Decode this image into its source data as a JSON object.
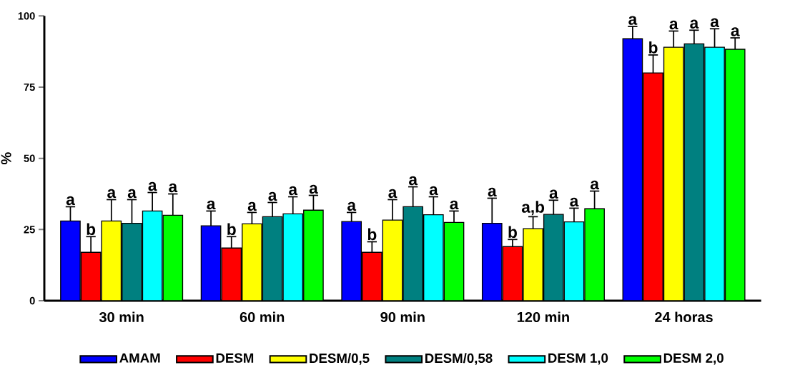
{
  "chart_data": {
    "type": "bar",
    "ylabel": "%",
    "categories": [
      "30 min",
      "60 min",
      "90 min",
      "120 min",
      "24 horas"
    ],
    "ylim": [
      0,
      100
    ],
    "yticks": [
      0,
      25,
      50,
      75,
      100
    ],
    "legend": "bottom",
    "series": [
      {
        "name": "AMAM",
        "color": "#0000ff",
        "values": [
          28,
          26.3,
          27.8,
          27.2,
          92
        ],
        "errors": [
          [
            28,
            33
          ],
          [
            26.3,
            31.5
          ],
          [
            27.8,
            31
          ],
          [
            27.2,
            36
          ],
          [
            92,
            96.3
          ]
        ],
        "value_labels": [
          "a",
          "a",
          "a",
          "a",
          "a"
        ]
      },
      {
        "name": "DESM",
        "color": "#ff0000",
        "values": [
          17,
          18.5,
          17,
          19,
          80
        ],
        "errors": [
          [
            17,
            22.5
          ],
          [
            18.5,
            22.5
          ],
          [
            17,
            20.7
          ],
          [
            19,
            21.5
          ],
          [
            80,
            86.3
          ]
        ],
        "value_labels": [
          "b",
          "b",
          "b",
          "b",
          "b"
        ]
      },
      {
        "name": "DESM/0,5",
        "color": "#ffff00",
        "values": [
          28,
          27,
          28.3,
          25.3,
          89
        ],
        "errors": [
          [
            28,
            35.5
          ],
          [
            27,
            31
          ],
          [
            28.3,
            35.5
          ],
          [
            25.3,
            29.5
          ],
          [
            89,
            94.7
          ]
        ],
        "value_labels": [
          "a",
          "a",
          "a",
          "a,b",
          "a"
        ]
      },
      {
        "name": "DESM/0,58",
        "color": "#008080",
        "values": [
          27.2,
          29.5,
          33,
          30.3,
          90.2
        ],
        "errors": [
          [
            27.2,
            35.5
          ],
          [
            29.5,
            34.5
          ],
          [
            33,
            40
          ],
          [
            30.3,
            35.3
          ],
          [
            90.2,
            95
          ]
        ],
        "value_labels": [
          "a",
          "a",
          "a",
          "a",
          "a"
        ]
      },
      {
        "name": "DESM 1,0",
        "color": "#00ffff",
        "values": [
          31.5,
          30.5,
          30.2,
          27.7,
          89
        ],
        "errors": [
          [
            31.5,
            38
          ],
          [
            30.5,
            36.5
          ],
          [
            30.2,
            36.5
          ],
          [
            27.7,
            32.5
          ],
          [
            89,
            95.5
          ]
        ],
        "value_labels": [
          "a",
          "a",
          "a",
          "a",
          "a"
        ]
      },
      {
        "name": "DESM 2,0",
        "color": "#00ff00",
        "values": [
          30,
          31.8,
          27.5,
          32.3,
          88.3
        ],
        "errors": [
          [
            30,
            37.5
          ],
          [
            31.8,
            37
          ],
          [
            27.5,
            31.5
          ],
          [
            32.3,
            38.5
          ],
          [
            88.3,
            92.3
          ]
        ],
        "value_labels": [
          "a",
          "a",
          "a",
          "a",
          "a"
        ]
      }
    ]
  }
}
